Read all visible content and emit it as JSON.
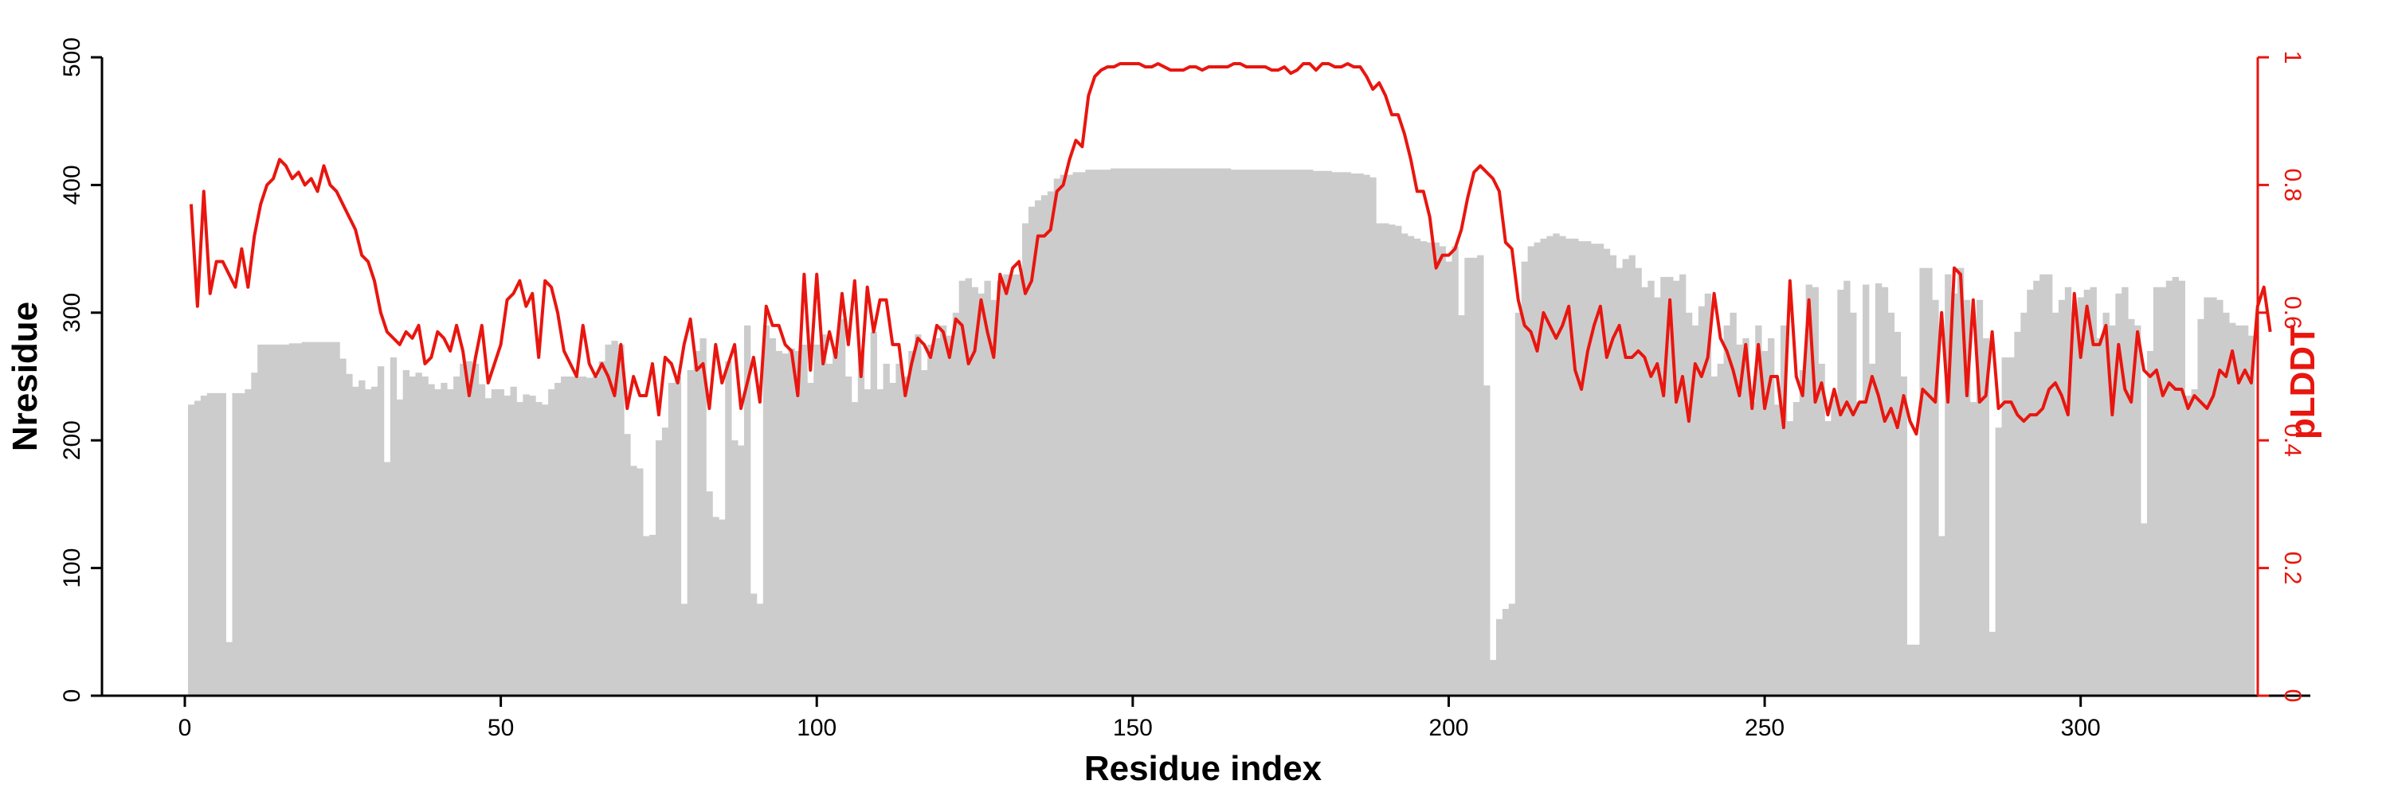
{
  "chart_data": {
    "type": "bar",
    "title": "",
    "xlabel": "Residue index",
    "ylabel": "Nresidue",
    "y2label": "pLDDT",
    "xlim": [
      0,
      325
    ],
    "ylim": [
      0,
      500
    ],
    "y2lim": [
      0,
      1
    ],
    "x_ticks": [
      0,
      50,
      100,
      150,
      200,
      250,
      300
    ],
    "x_tick_labels": [
      "0",
      "50",
      "100",
      "150",
      "200",
      "250",
      "300"
    ],
    "y_ticks": [
      0,
      100,
      200,
      300,
      400,
      500
    ],
    "y_tick_labels": [
      "0",
      "100",
      "200",
      "300",
      "400",
      "500"
    ],
    "y2_ticks": [
      0,
      0.2,
      0.4,
      0.6,
      0.8,
      1
    ],
    "y2_tick_labels": [
      "0",
      "0.2",
      "0.4",
      "0.6",
      "0.8",
      "1"
    ],
    "grid": false,
    "legend": "none",
    "colors": {
      "bars": "#cccccc",
      "line": "#e8160f",
      "axis": "#000000",
      "right_axis": "#e8160f"
    },
    "series": [
      {
        "kind": "bar",
        "axis": "left",
        "x_start": 1,
        "values": [
          228,
          231,
          235,
          237,
          237,
          237,
          42,
          237,
          237,
          240,
          253,
          275,
          275,
          275,
          275,
          275,
          276,
          276,
          277,
          277,
          277,
          277,
          277,
          277,
          264,
          252,
          242,
          247,
          240,
          242,
          258,
          183,
          265,
          232,
          255,
          250,
          253,
          250,
          244,
          240,
          245,
          240,
          250,
          260,
          262,
          260,
          244,
          233,
          240,
          240,
          235,
          242,
          230,
          236,
          235,
          230,
          228,
          240,
          245,
          250,
          250,
          250,
          250,
          249,
          250,
          262,
          275,
          278,
          275,
          205,
          180,
          178,
          125,
          126,
          200,
          210,
          245,
          250,
          72,
          255,
          270,
          280,
          160,
          140,
          138,
          262,
          200,
          196,
          290,
          80,
          72,
          290,
          280,
          270,
          268,
          272,
          270,
          275,
          245,
          275,
          283,
          260,
          270,
          295,
          250,
          230,
          270,
          240,
          285,
          240,
          260,
          245,
          260,
          250,
          270,
          283,
          255,
          275,
          280,
          290,
          282,
          300,
          325,
          327,
          320,
          315,
          325,
          310,
          325,
          330,
          330,
          330,
          370,
          383,
          388,
          392,
          395,
          405,
          408,
          408,
          410,
          410,
          412,
          412,
          412,
          412,
          413,
          413,
          413,
          413,
          413,
          413,
          413,
          413,
          413,
          413,
          413,
          413,
          413,
          413,
          413,
          413,
          413,
          413,
          413,
          412,
          412,
          412,
          412,
          412,
          412,
          412,
          412,
          412,
          412,
          412,
          412,
          412,
          411,
          411,
          411,
          410,
          410,
          410,
          409,
          409,
          408,
          406,
          370,
          370,
          369,
          368,
          362,
          360,
          358,
          356,
          355,
          355,
          352,
          340,
          352,
          298,
          343,
          343,
          345,
          243,
          28,
          60,
          68,
          72,
          300,
          340,
          352,
          355,
          358,
          360,
          362,
          360,
          358,
          358,
          356,
          356,
          354,
          354,
          350,
          345,
          335,
          342,
          345,
          335,
          320,
          325,
          312,
          328,
          328,
          325,
          330,
          300,
          290,
          305,
          315,
          250,
          260,
          290,
          300,
          275,
          280,
          230,
          290,
          270,
          280,
          228,
          290,
          215,
          230,
          255,
          322,
          320,
          260,
          215,
          232,
          318,
          325,
          300,
          230,
          322,
          260,
          323,
          320,
          300,
          285,
          250,
          40,
          40,
          335,
          335,
          310,
          125,
          330,
          315,
          335,
          310,
          230,
          310,
          280,
          50,
          210,
          265,
          265,
          285,
          300,
          318,
          325,
          330,
          330,
          300,
          310,
          320,
          300,
          312,
          318,
          320,
          280,
          300,
          290,
          315,
          320,
          295,
          290,
          135,
          270,
          320,
          320,
          325,
          328,
          325,
          235,
          240,
          295,
          312,
          312,
          310,
          300,
          292,
          290,
          290,
          282
        ]
      },
      {
        "kind": "line",
        "axis": "right",
        "x_start": 1,
        "values": [
          0.77,
          0.61,
          0.79,
          0.63,
          0.68,
          0.68,
          0.66,
          0.64,
          0.7,
          0.64,
          0.72,
          0.77,
          0.8,
          0.81,
          0.84,
          0.83,
          0.81,
          0.82,
          0.8,
          0.81,
          0.79,
          0.83,
          0.8,
          0.79,
          0.77,
          0.75,
          0.73,
          0.69,
          0.68,
          0.65,
          0.6,
          0.57,
          0.56,
          0.55,
          0.57,
          0.56,
          0.58,
          0.52,
          0.53,
          0.57,
          0.56,
          0.54,
          0.58,
          0.54,
          0.47,
          0.53,
          0.58,
          0.49,
          0.52,
          0.55,
          0.62,
          0.63,
          0.65,
          0.61,
          0.63,
          0.53,
          0.65,
          0.64,
          0.6,
          0.54,
          0.52,
          0.5,
          0.58,
          0.52,
          0.5,
          0.52,
          0.5,
          0.47,
          0.55,
          0.45,
          0.5,
          0.47,
          0.47,
          0.52,
          0.44,
          0.53,
          0.52,
          0.49,
          0.55,
          0.59,
          0.51,
          0.52,
          0.45,
          0.55,
          0.49,
          0.52,
          0.55,
          0.45,
          0.49,
          0.53,
          0.46,
          0.61,
          0.58,
          0.58,
          0.55,
          0.54,
          0.47,
          0.66,
          0.51,
          0.66,
          0.52,
          0.57,
          0.53,
          0.63,
          0.55,
          0.65,
          0.5,
          0.64,
          0.57,
          0.62,
          0.62,
          0.55,
          0.55,
          0.47,
          0.52,
          0.56,
          0.55,
          0.53,
          0.58,
          0.57,
          0.53,
          0.59,
          0.58,
          0.52,
          0.54,
          0.62,
          0.57,
          0.53,
          0.66,
          0.63,
          0.67,
          0.68,
          0.63,
          0.65,
          0.72,
          0.72,
          0.73,
          0.79,
          0.8,
          0.84,
          0.87,
          0.86,
          0.94,
          0.97,
          0.98,
          0.985,
          0.985,
          0.99,
          0.99,
          0.99,
          0.99,
          0.985,
          0.985,
          0.99,
          0.985,
          0.98,
          0.98,
          0.98,
          0.985,
          0.985,
          0.98,
          0.985,
          0.985,
          0.985,
          0.985,
          0.99,
          0.99,
          0.985,
          0.985,
          0.985,
          0.985,
          0.98,
          0.98,
          0.985,
          0.975,
          0.98,
          0.99,
          0.99,
          0.98,
          0.99,
          0.99,
          0.985,
          0.985,
          0.99,
          0.985,
          0.985,
          0.97,
          0.95,
          0.96,
          0.94,
          0.91,
          0.91,
          0.88,
          0.84,
          0.79,
          0.79,
          0.75,
          0.67,
          0.69,
          0.69,
          0.7,
          0.73,
          0.78,
          0.82,
          0.83,
          0.82,
          0.81,
          0.79,
          0.71,
          0.7,
          0.62,
          0.58,
          0.57,
          0.54,
          0.6,
          0.58,
          0.56,
          0.58,
          0.61,
          0.51,
          0.48,
          0.54,
          0.58,
          0.61,
          0.53,
          0.56,
          0.58,
          0.53,
          0.53,
          0.54,
          0.53,
          0.5,
          0.52,
          0.47,
          0.62,
          0.46,
          0.5,
          0.43,
          0.52,
          0.5,
          0.53,
          0.63,
          0.56,
          0.54,
          0.51,
          0.47,
          0.55,
          0.45,
          0.55,
          0.45,
          0.5,
          0.5,
          0.42,
          0.65,
          0.5,
          0.47,
          0.62,
          0.46,
          0.49,
          0.44,
          0.48,
          0.44,
          0.46,
          0.44,
          0.46,
          0.46,
          0.5,
          0.47,
          0.43,
          0.45,
          0.42,
          0.47,
          0.43,
          0.41,
          0.48,
          0.47,
          0.46,
          0.6,
          0.46,
          0.67,
          0.66,
          0.47,
          0.62,
          0.46,
          0.47,
          0.57,
          0.45,
          0.46,
          0.46,
          0.44,
          0.43,
          0.44,
          0.44,
          0.45,
          0.48,
          0.49,
          0.47,
          0.44,
          0.63,
          0.53,
          0.61,
          0.55,
          0.55,
          0.58,
          0.44,
          0.55,
          0.48,
          0.46,
          0.57,
          0.51,
          0.5,
          0.51,
          0.47,
          0.49,
          0.48,
          0.48,
          0.45,
          0.47,
          0.46,
          0.45,
          0.47,
          0.51,
          0.5,
          0.54,
          0.49,
          0.51,
          0.49,
          0.61,
          0.64,
          0.57
        ]
      }
    ]
  }
}
